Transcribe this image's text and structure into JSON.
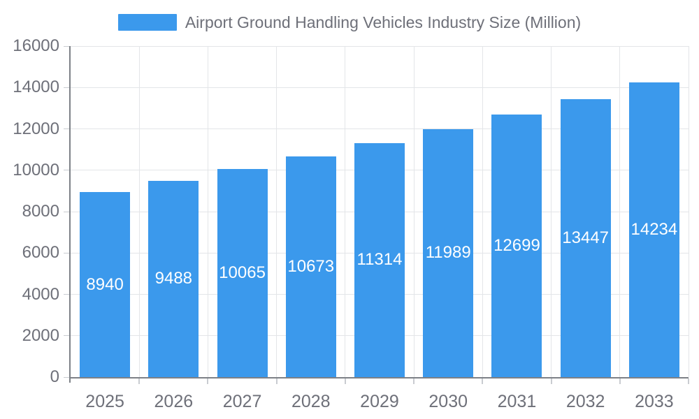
{
  "legend": {
    "label": "Airport Ground Handling Vehicles Industry Size (Million)",
    "swatch_color": "#3B99EC"
  },
  "chart_data": {
    "type": "bar",
    "title": "Airport Ground Handling Vehicles Industry Size (Million)",
    "series_name": "Airport Ground Handling Vehicles Industry Size (Million)",
    "categories": [
      "2025",
      "2026",
      "2027",
      "2028",
      "2029",
      "2030",
      "2031",
      "2032",
      "2033"
    ],
    "values": [
      8940,
      9488,
      10065,
      10673,
      11314,
      11989,
      12699,
      13447,
      14234
    ],
    "value_labels": [
      "8940",
      "9488",
      "10065",
      "10673",
      "11314",
      "11989",
      "12699",
      "13447",
      "14234"
    ],
    "xlabel": "",
    "ylabel": "",
    "ylim": [
      0,
      16000
    ],
    "y_ticks": [
      0,
      2000,
      4000,
      6000,
      8000,
      10000,
      12000,
      14000,
      16000
    ],
    "y_tick_labels": [
      "0",
      "2000",
      "4000",
      "6000",
      "8000",
      "10000",
      "12000",
      "14000",
      "16000"
    ],
    "grid": true,
    "legend_position": "top",
    "bar_color": "#3B99EC",
    "bar_label_color": "#FFFFFF",
    "axis_color": "#7D8187",
    "tick_color": "#C9CCD1",
    "grid_color": "#E3E5E8",
    "text_color": "#6E7079"
  }
}
